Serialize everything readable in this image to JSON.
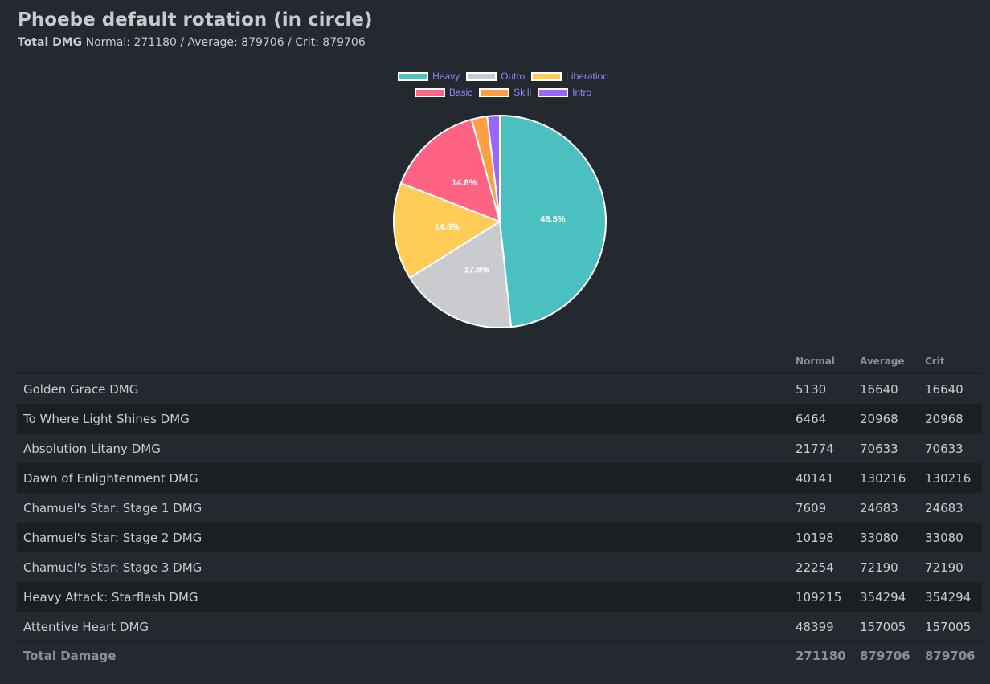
{
  "header": {
    "title": "Phoebe default rotation (in circle)",
    "total_label": "Total DMG",
    "summary": "Normal: 271180 / Average: 879706 / Crit: 879706"
  },
  "chart_data": {
    "type": "pie",
    "title": "",
    "legend": [
      {
        "name": "Heavy",
        "color": "#4bc0c0"
      },
      {
        "name": "Outro",
        "color": "#c9cbcf"
      },
      {
        "name": "Liberation",
        "color": "#ffcd56"
      },
      {
        "name": "Basic",
        "color": "#ff6384"
      },
      {
        "name": "Skill",
        "color": "#ff9f40"
      },
      {
        "name": "Intro",
        "color": "#9966ff"
      }
    ],
    "slices": [
      {
        "name": "Heavy",
        "value": 48.3,
        "label": "48.3%",
        "color": "#4bc0c0"
      },
      {
        "name": "Outro",
        "value": 17.8,
        "label": "17.8%",
        "color": "#c9cbcf"
      },
      {
        "name": "Liberation",
        "value": 14.8,
        "label": "14.8%",
        "color": "#ffcd56"
      },
      {
        "name": "Basic",
        "value": 14.8,
        "label": "14.8%",
        "color": "#ff6384"
      },
      {
        "name": "Skill",
        "value": 2.4,
        "label": "",
        "color": "#ff9f40"
      },
      {
        "name": "Intro",
        "value": 1.9,
        "label": "",
        "color": "#9966ff"
      }
    ],
    "legend_position": "top"
  },
  "table": {
    "headers": {
      "normal": "Normal",
      "average": "Average",
      "crit": "Crit"
    },
    "rows": [
      {
        "name": "Golden Grace DMG",
        "normal": "5130",
        "average": "16640",
        "crit": "16640"
      },
      {
        "name": "To Where Light Shines DMG",
        "normal": "6464",
        "average": "20968",
        "crit": "20968"
      },
      {
        "name": "Absolution Litany DMG",
        "normal": "21774",
        "average": "70633",
        "crit": "70633"
      },
      {
        "name": "Dawn of Enlightenment DMG",
        "normal": "40141",
        "average": "130216",
        "crit": "130216"
      },
      {
        "name": "Chamuel's Star: Stage 1 DMG",
        "normal": "7609",
        "average": "24683",
        "crit": "24683"
      },
      {
        "name": "Chamuel's Star: Stage 2 DMG",
        "normal": "10198",
        "average": "33080",
        "crit": "33080"
      },
      {
        "name": "Chamuel's Star: Stage 3 DMG",
        "normal": "22254",
        "average": "72190",
        "crit": "72190"
      },
      {
        "name": "Heavy Attack: Starflash DMG",
        "normal": "109215",
        "average": "354294",
        "crit": "354294"
      },
      {
        "name": "Attentive Heart DMG",
        "normal": "48399",
        "average": "157005",
        "crit": "157005"
      }
    ],
    "total": {
      "name": "Total Damage",
      "normal": "271180",
      "average": "879706",
      "crit": "879706"
    }
  }
}
